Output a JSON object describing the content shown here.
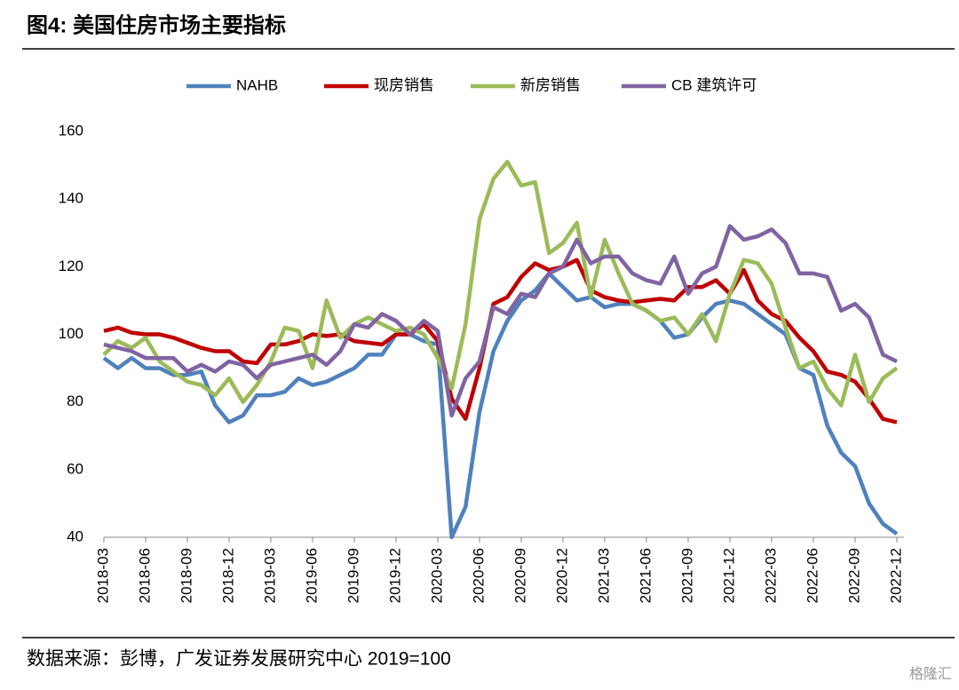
{
  "chart_data": {
    "type": "line",
    "title": "图4:  美国住房市场主要指标",
    "source": "数据来源：彭博，广发证券发展研究中心  2019=100",
    "watermark": "格隆汇",
    "categories": [
      "2018-03",
      null,
      null,
      "2018-06",
      null,
      null,
      "2018-09",
      null,
      null,
      "2018-12",
      null,
      null,
      "2019-03",
      null,
      null,
      "2019-06",
      null,
      null,
      "2019-09",
      null,
      null,
      "2019-12",
      null,
      null,
      "2020-03",
      null,
      null,
      "2020-06",
      null,
      null,
      "2020-09",
      null,
      null,
      "2020-12",
      null,
      null,
      "2021-03",
      null,
      null,
      "2021-06",
      null,
      null,
      "2021-09",
      null,
      null,
      "2021-12",
      null,
      null,
      "2022-03",
      null,
      null,
      "2022-06",
      null,
      null,
      "2022-09",
      null,
      null,
      "2022-12"
    ],
    "ylim": [
      40,
      160
    ],
    "yticks": [
      40,
      60,
      80,
      100,
      120,
      140,
      160
    ],
    "grid": false,
    "legend": "top",
    "series": [
      {
        "name": "NAHB",
        "color": "#4f81bd",
        "values": [
          93,
          90,
          93,
          90,
          90,
          88,
          88,
          89,
          79,
          74,
          76,
          82,
          82,
          83,
          87,
          85,
          86,
          88,
          90,
          94,
          94,
          100,
          100,
          98,
          97,
          40,
          49,
          77,
          95,
          104,
          110,
          113,
          118,
          114,
          110,
          111,
          108,
          109,
          109,
          107,
          104,
          99,
          100,
          105,
          109,
          110,
          109,
          106,
          103,
          100,
          90,
          88,
          73,
          65,
          61,
          50,
          44,
          41
        ]
      },
      {
        "name": "现房销售",
        "color": "#c00000",
        "values": [
          101,
          102,
          100.5,
          100,
          100,
          99,
          97.5,
          96,
          95,
          95,
          92,
          91.5,
          97,
          97,
          98,
          100,
          99.5,
          100,
          98,
          97.5,
          97,
          100,
          100,
          103,
          98,
          81,
          75,
          90,
          109,
          111,
          117,
          121,
          119,
          120,
          122,
          113,
          111,
          110,
          109.5,
          110,
          110.5,
          110,
          114,
          114,
          116,
          112,
          119,
          110,
          106,
          104,
          99,
          95,
          89,
          88,
          86,
          81,
          75,
          74
        ]
      },
      {
        "name": "新房销售",
        "color": "#9bbb59",
        "values": [
          94,
          98,
          96,
          99,
          92,
          89,
          86,
          85,
          82,
          87,
          80,
          85,
          92,
          102,
          101,
          90,
          110,
          99,
          103,
          105,
          103,
          101,
          102,
          100,
          93,
          84,
          103,
          134,
          146,
          151,
          144,
          145,
          124,
          127,
          133,
          111,
          128,
          118,
          109,
          107,
          104,
          105,
          100,
          106,
          98,
          112,
          122,
          121,
          115,
          102,
          90,
          92,
          84,
          79,
          94,
          80,
          87,
          90
        ]
      },
      {
        "name": "CB 建筑许可",
        "color": "#8064a2",
        "values": [
          97,
          96,
          95,
          93,
          93,
          93,
          89,
          91,
          89,
          92,
          91,
          87,
          91,
          92,
          93,
          94,
          91,
          95,
          103,
          102,
          106,
          104,
          100,
          104,
          101,
          76,
          87,
          92,
          108,
          106,
          112,
          111,
          118,
          120,
          128,
          121,
          123,
          123,
          118,
          116,
          115,
          123,
          112,
          118,
          120,
          132,
          128,
          129,
          131,
          127,
          118,
          118,
          117,
          107,
          109,
          105,
          94,
          92
        ]
      }
    ]
  }
}
